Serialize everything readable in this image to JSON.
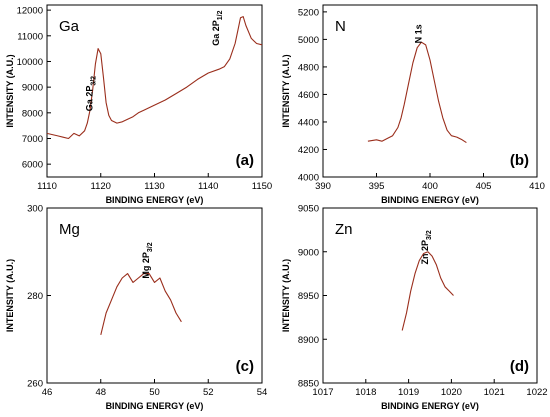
{
  "chart_data": [
    {
      "type": "line",
      "panel": "(a)",
      "element": "Ga",
      "xlabel": "BINDING ENERGY (eV)",
      "ylabel": "INTENSITY (A.U.)",
      "xlim": [
        1110,
        1150
      ],
      "ylim": [
        5500,
        12200
      ],
      "xticks": [
        "1110",
        "1120",
        "1130",
        "1140",
        "1150"
      ],
      "yticks": [
        "6000",
        "7000",
        "8000",
        "9000",
        "10000",
        "11000",
        "12000"
      ],
      "annotations": [
        {
          "base": "Ga 2P",
          "sub": "3/2",
          "x": 1118.5,
          "y": 8750
        },
        {
          "base": "Ga 2P",
          "sub": "1/2",
          "x": 1142.0,
          "y": 11300
        }
      ],
      "series": [
        {
          "color": "#9a2e1c",
          "x": [
            1110,
            1111,
            1112,
            1113,
            1114,
            1115,
            1116,
            1117,
            1117.5,
            1118,
            1118.5,
            1119,
            1119.5,
            1120,
            1120.5,
            1121,
            1121.5,
            1122,
            1123,
            1124,
            1125,
            1126,
            1127,
            1128,
            1130,
            1132,
            1134,
            1136,
            1138,
            1140,
            1142,
            1143,
            1144,
            1145,
            1145.5,
            1146,
            1146.5,
            1147,
            1148,
            1149,
            1150
          ],
          "y": [
            7200,
            7150,
            7100,
            7050,
            7000,
            7200,
            7100,
            7300,
            7600,
            8100,
            8900,
            9900,
            10500,
            10300,
            9400,
            8400,
            7900,
            7700,
            7600,
            7650,
            7750,
            7850,
            8000,
            8100,
            8300,
            8500,
            8750,
            9000,
            9300,
            9550,
            9700,
            9800,
            10100,
            10700,
            11200,
            11700,
            11750,
            11400,
            10900,
            10700,
            10650
          ]
        }
      ]
    },
    {
      "type": "line",
      "panel": "(b)",
      "element": "N",
      "xlabel": "BINDING ENERGY (eV)",
      "ylabel": "INTENSITY (A.U.)",
      "xlim": [
        390,
        410
      ],
      "ylim": [
        4000,
        5250
      ],
      "xticks": [
        "390",
        "395",
        "400",
        "405",
        "410"
      ],
      "yticks": [
        "4000",
        "4200",
        "4400",
        "4600",
        "4800",
        "5000",
        "5200"
      ],
      "annotations": [
        {
          "base": "N 1s",
          "sub": "",
          "x": 399.2,
          "y": 5040
        }
      ],
      "series": [
        {
          "color": "#9a2e1c",
          "x": [
            394.2,
            395,
            395.5,
            396,
            396.5,
            397,
            397.3,
            397.6,
            398,
            398.4,
            398.8,
            399.2,
            399.6,
            400,
            400.4,
            400.8,
            401.2,
            401.6,
            402,
            402.5,
            403,
            403.4
          ],
          "y": [
            4260,
            4270,
            4260,
            4280,
            4300,
            4360,
            4430,
            4530,
            4680,
            4830,
            4940,
            4980,
            4960,
            4850,
            4700,
            4550,
            4430,
            4340,
            4300,
            4290,
            4270,
            4250
          ]
        }
      ]
    },
    {
      "type": "line",
      "panel": "(c)",
      "element": "Mg",
      "xlabel": "BINDING ENERGY (eV)",
      "ylabel": "INTENSITY (A.U.)",
      "xlim": [
        46,
        54
      ],
      "ylim": [
        260,
        300
      ],
      "xticks": [
        "46",
        "48",
        "50",
        "52",
        "54"
      ],
      "yticks": [
        "260",
        "280",
        "300"
      ],
      "annotations": [
        {
          "base": "Mg 2P",
          "sub": "3/2",
          "x": 49.8,
          "y": 288
        }
      ],
      "series": [
        {
          "color": "#9a2e1c",
          "x": [
            48.0,
            48.2,
            48.4,
            48.6,
            48.8,
            49.0,
            49.2,
            49.4,
            49.6,
            49.8,
            50.0,
            50.2,
            50.4,
            50.6,
            50.8,
            51.0
          ],
          "y": [
            271,
            276,
            279,
            282,
            284,
            285,
            283,
            284,
            285,
            285,
            283,
            284,
            281,
            279,
            276,
            274
          ]
        }
      ]
    },
    {
      "type": "line",
      "panel": "(d)",
      "element": "Zn",
      "xlabel": "BINDING ENERGY (eV)",
      "ylabel": "INTENSITY (A.U.)",
      "xlim": [
        1017,
        1022
      ],
      "ylim": [
        8850,
        9050
      ],
      "xticks": [
        "1017",
        "1018",
        "1019",
        "1020",
        "1021",
        "1022"
      ],
      "yticks": [
        "8850",
        "8900",
        "8950",
        "9000",
        "9050"
      ],
      "annotations": [
        {
          "base": "Zn 2P",
          "sub": "3/2",
          "x": 1019.45,
          "y": 9005
        }
      ],
      "series": [
        {
          "color": "#9a2e1c",
          "x": [
            1018.85,
            1018.95,
            1019.05,
            1019.15,
            1019.25,
            1019.35,
            1019.45,
            1019.55,
            1019.65,
            1019.75,
            1019.85,
            1019.95,
            1020.05
          ],
          "y": [
            8910,
            8930,
            8955,
            8975,
            8990,
            8998,
            9000,
            8995,
            8985,
            8970,
            8960,
            8955,
            8950
          ]
        }
      ]
    }
  ]
}
